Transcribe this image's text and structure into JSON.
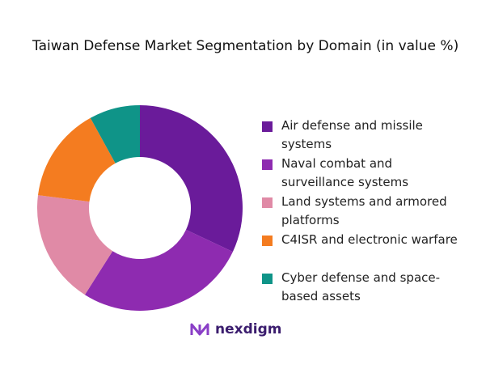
{
  "chart_data": {
    "type": "donut",
    "title": "Taiwan Defense Market Segmentation by Domain (in value %)",
    "categories": [
      "Air defense and missile systems",
      "Naval combat and surveillance systems",
      "Land systems and armored platforms",
      "C4ISR and electronic warfare",
      "Cyber defense and space-based assets"
    ],
    "values": [
      32,
      27,
      18,
      15,
      8
    ],
    "colors": [
      "#6a1b9a",
      "#8e2bb0",
      "#e08aa6",
      "#f47c20",
      "#0f9488"
    ],
    "legend": "right"
  },
  "brand": "nexdigm"
}
